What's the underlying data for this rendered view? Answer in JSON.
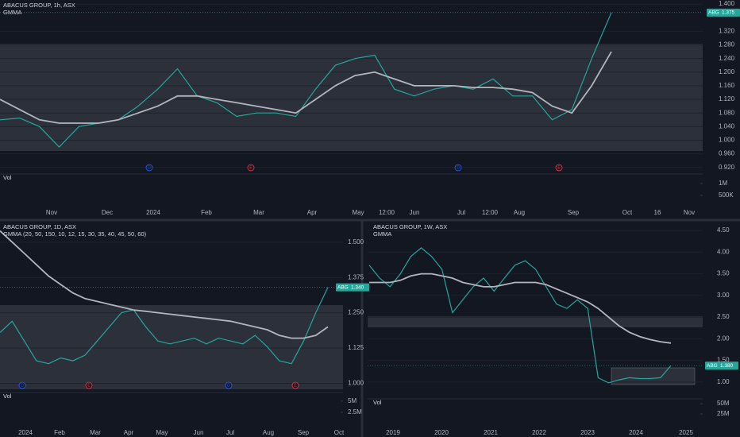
{
  "chart_data": [
    {
      "type": "line",
      "title": "ABACUS GROUP, 1h, ASX",
      "subtitle": "GMMA",
      "volume_label": "Vol",
      "symbol": "ABG",
      "last_value": {
        "value": 1.375,
        "label": "1.375"
      },
      "events": [
        "D",
        "E",
        "D",
        "E"
      ],
      "x_labels": [
        "Nov",
        "Dec",
        "2024",
        "Feb",
        "Mar",
        "Apr",
        "May",
        "12:00",
        "Jun",
        "Jul",
        "12:00",
        "Aug",
        "Sep",
        "Oct",
        "16",
        "Nov"
      ],
      "ylim": [
        0.91,
        1.412
      ],
      "yticks": [
        {
          "value": 0.92,
          "label": "0.920"
        },
        {
          "value": 0.96,
          "label": "0.960"
        },
        {
          "value": 1.0,
          "label": "1.000"
        },
        {
          "value": 1.04,
          "label": "1.040"
        },
        {
          "value": 1.08,
          "label": "1.080"
        },
        {
          "value": 1.12,
          "label": "1.120"
        },
        {
          "value": 1.16,
          "label": "1.160"
        },
        {
          "value": 1.2,
          "label": "1.200"
        },
        {
          "value": 1.24,
          "label": "1.240"
        },
        {
          "value": 1.28,
          "label": "1.280"
        },
        {
          "value": 1.32,
          "label": "1.320"
        },
        {
          "value": 1.4,
          "label": "1.400"
        }
      ],
      "vol_ylim": [
        0,
        1300000
      ],
      "vol_ticks": [
        {
          "value": 500000,
          "label": "500K"
        },
        {
          "value": 1000000,
          "label": "1M"
        }
      ],
      "grid": true,
      "series": [
        {
          "color": "#26a69a",
          "values": [
            1.06,
            1.065,
            1.04,
            0.98,
            1.04,
            1.05,
            1.06,
            1.1,
            1.15,
            1.21,
            1.13,
            1.11,
            1.07,
            1.08,
            1.08,
            1.07,
            1.15,
            1.22,
            1.24,
            1.25,
            1.15,
            1.13,
            1.15,
            1.16,
            1.15,
            1.18,
            1.13,
            1.13,
            1.06,
            1.09,
            1.24,
            1.375
          ]
        },
        {
          "color": "#b2b5be",
          "values": [
            1.12,
            1.09,
            1.06,
            1.05,
            1.05,
            1.05,
            1.06,
            1.08,
            1.1,
            1.13,
            1.13,
            1.12,
            1.11,
            1.1,
            1.09,
            1.08,
            1.12,
            1.16,
            1.19,
            1.2,
            1.18,
            1.16,
            1.16,
            1.16,
            1.155,
            1.155,
            1.15,
            1.14,
            1.1,
            1.08,
            1.16,
            1.26
          ]
        }
      ]
    },
    {
      "type": "line",
      "title": "ABACUS GROUP, 1D, ASX",
      "subtitle": "GMMA (20, 50, 150, 10, 12, 15, 30, 35, 40, 45, 50, 60)",
      "volume_label": "Vol",
      "symbol": "ABG",
      "last_value": {
        "value": 1.34,
        "label": "1.340"
      },
      "events": [
        "D",
        "E",
        "D",
        "E"
      ],
      "x_labels": [
        "2024",
        "Feb",
        "Mar",
        "Apr",
        "May",
        "Jun",
        "Jul",
        "Aug",
        "Sep",
        "Oct"
      ],
      "ylim": [
        0.965,
        1.561
      ],
      "yticks": [
        {
          "value": 1.0,
          "label": "1.000"
        },
        {
          "value": 1.125,
          "label": "1.125"
        },
        {
          "value": 1.25,
          "label": "1.250"
        },
        {
          "value": 1.375,
          "label": "1.375"
        },
        {
          "value": 1.5,
          "label": "1.500"
        }
      ],
      "vol_ylim": [
        0,
        6400000
      ],
      "vol_ticks": [
        {
          "value": 2500000,
          "label": "2.5M"
        },
        {
          "value": 5000000,
          "label": "5M"
        }
      ],
      "grid": true,
      "series": [
        {
          "color": "#26a69a",
          "values": [
            1.18,
            1.22,
            1.15,
            1.08,
            1.07,
            1.09,
            1.08,
            1.1,
            1.15,
            1.2,
            1.25,
            1.26,
            1.2,
            1.15,
            1.14,
            1.15,
            1.16,
            1.14,
            1.16,
            1.15,
            1.14,
            1.17,
            1.13,
            1.08,
            1.07,
            1.15,
            1.25,
            1.34
          ]
        },
        {
          "color": "#b2b5be",
          "values": [
            1.54,
            1.5,
            1.46,
            1.42,
            1.38,
            1.35,
            1.32,
            1.3,
            1.29,
            1.28,
            1.27,
            1.26,
            1.255,
            1.25,
            1.245,
            1.24,
            1.235,
            1.23,
            1.225,
            1.22,
            1.21,
            1.2,
            1.19,
            1.17,
            1.16,
            1.16,
            1.17,
            1.2
          ]
        }
      ]
    },
    {
      "type": "line",
      "title": "ABACUS GROUP, 1W, ASX",
      "subtitle": "GMMA",
      "volume_label": "Vol",
      "symbol": "ABG",
      "last_value": {
        "value": 1.38,
        "label": "1.380"
      },
      "events": [],
      "x_labels": [
        "2019",
        "2020",
        "2021",
        "2022",
        "2023",
        "2024",
        "2025"
      ],
      "ylim": [
        0.74,
        4.63
      ],
      "yticks": [
        {
          "value": 1.0,
          "label": "1.00"
        },
        {
          "value": 1.5,
          "label": "1.50"
        },
        {
          "value": 2.0,
          "label": "2.00"
        },
        {
          "value": 2.5,
          "label": "2.50"
        },
        {
          "value": 3.0,
          "label": "3.00"
        },
        {
          "value": 3.5,
          "label": "3.50"
        },
        {
          "value": 4.0,
          "label": "4.00"
        },
        {
          "value": 4.5,
          "label": "4.50"
        }
      ],
      "vol_ylim": [
        0,
        56000000
      ],
      "vol_ticks": [
        {
          "value": 25000000,
          "label": "25M"
        },
        {
          "value": 50000000,
          "label": "50M"
        }
      ],
      "grid": true,
      "series": [
        {
          "color": "#26a69a",
          "values": [
            3.7,
            3.4,
            3.2,
            3.5,
            3.9,
            4.1,
            3.9,
            3.6,
            2.6,
            2.9,
            3.2,
            3.4,
            3.1,
            3.4,
            3.7,
            3.8,
            3.6,
            3.2,
            2.8,
            2.7,
            2.9,
            2.7,
            1.1,
            0.98,
            1.05,
            1.1,
            1.08,
            1.08,
            1.1,
            1.38
          ]
        },
        {
          "color": "#b2b5be",
          "values": [
            3.3,
            3.3,
            3.3,
            3.35,
            3.45,
            3.5,
            3.5,
            3.45,
            3.4,
            3.3,
            3.25,
            3.2,
            3.2,
            3.25,
            3.3,
            3.3,
            3.3,
            3.25,
            3.15,
            3.05,
            2.95,
            2.85,
            2.7,
            2.5,
            2.3,
            2.15,
            2.05,
            1.98,
            1.93,
            1.9
          ]
        }
      ]
    }
  ]
}
